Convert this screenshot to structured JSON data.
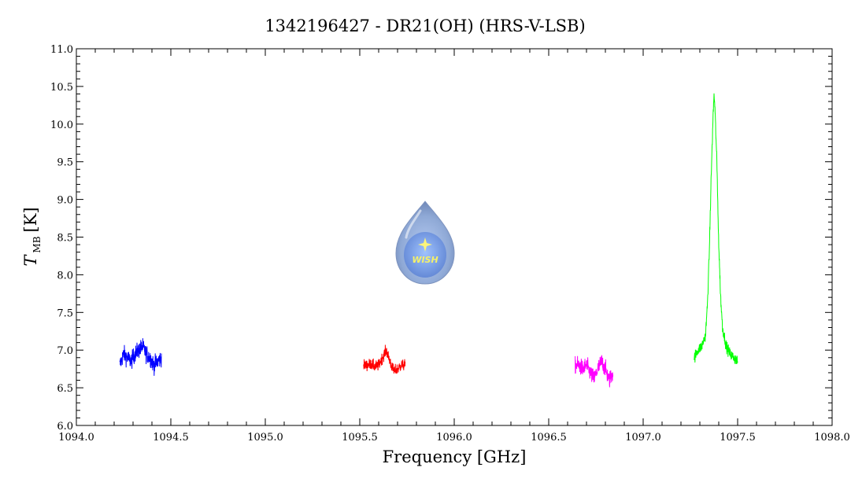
{
  "chart_data": {
    "type": "line",
    "title": "1342196427 - DR21(OH) (HRS-V-LSB)",
    "xlabel": "Frequency [GHz]",
    "ylabel_main": "T",
    "ylabel_sub": "MB",
    "ylabel_unit": "[K]",
    "xlim": [
      1094.0,
      1098.0
    ],
    "ylim": [
      6.0,
      11.0
    ],
    "xticks": [
      "1094.0",
      "1094.5",
      "1095.0",
      "1095.5",
      "1096.0",
      "1096.5",
      "1097.0",
      "1097.5",
      "1098.0"
    ],
    "yticks": [
      "6.0",
      "6.5",
      "7.0",
      "7.5",
      "8.0",
      "8.5",
      "9.0",
      "9.5",
      "10.0",
      "10.5",
      "11.0"
    ],
    "grid": false,
    "logo_text": "WISH",
    "series": [
      {
        "color": "#0000ff",
        "x": [
          1094.23,
          1094.25,
          1094.27,
          1094.29,
          1094.31,
          1094.33,
          1094.35,
          1094.37,
          1094.39,
          1094.41,
          1094.43,
          1094.45
        ],
        "y": [
          6.8,
          6.95,
          6.9,
          6.85,
          6.95,
          7.0,
          7.05,
          6.95,
          6.9,
          6.8,
          6.85,
          6.9
        ],
        "noise": 0.12
      },
      {
        "color": "#ff0000",
        "x": [
          1095.52,
          1095.54,
          1095.56,
          1095.58,
          1095.6,
          1095.62,
          1095.64,
          1095.66,
          1095.68,
          1095.7,
          1095.72,
          1095.74
        ],
        "y": [
          6.8,
          6.8,
          6.82,
          6.78,
          6.8,
          6.9,
          7.0,
          6.85,
          6.72,
          6.75,
          6.8,
          6.8
        ],
        "noise": 0.08
      },
      {
        "color": "#ff00ff",
        "x": [
          1096.64,
          1096.66,
          1096.68,
          1096.7,
          1096.72,
          1096.74,
          1096.76,
          1096.78,
          1096.8,
          1096.82,
          1096.84
        ],
        "y": [
          6.8,
          6.8,
          6.75,
          6.8,
          6.7,
          6.62,
          6.75,
          6.85,
          6.75,
          6.6,
          6.7
        ],
        "noise": 0.12
      },
      {
        "color": "#00ff00",
        "x": [
          1097.27,
          1097.29,
          1097.31,
          1097.33,
          1097.34,
          1097.35,
          1097.36,
          1097.37,
          1097.375,
          1097.38,
          1097.39,
          1097.4,
          1097.41,
          1097.42,
          1097.44,
          1097.46,
          1097.48,
          1097.5
        ],
        "y": [
          6.9,
          7.0,
          7.05,
          7.2,
          7.6,
          8.3,
          9.3,
          10.1,
          10.4,
          10.2,
          9.5,
          8.4,
          7.7,
          7.3,
          7.05,
          6.95,
          6.9,
          6.85
        ],
        "noise": 0.08
      }
    ]
  }
}
